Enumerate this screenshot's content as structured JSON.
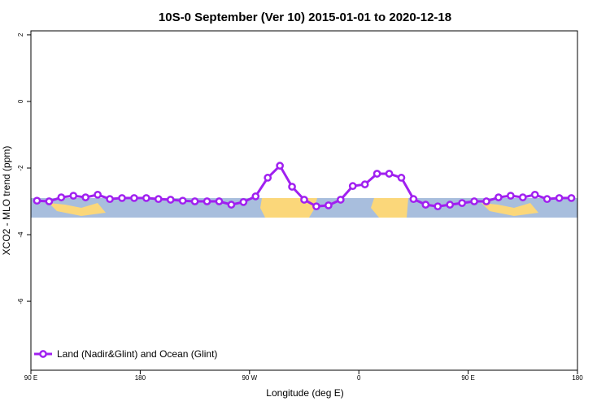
{
  "chart_data": {
    "type": "line",
    "title": "10S-0 September (Ver 10)   2015-01-01 to 2020-12-18",
    "x_label": "Longitude (deg E)",
    "y_label": "XCO2 - MLO trend (ppm)",
    "x": [
      95,
      105,
      115,
      125,
      135,
      145,
      155,
      165,
      175,
      185,
      195,
      205,
      215,
      225,
      235,
      245,
      255,
      265,
      275,
      285,
      295,
      305,
      315,
      325,
      335,
      345,
      355,
      365,
      375,
      385,
      395,
      405,
      415,
      425,
      435,
      445,
      455,
      465,
      475,
      485,
      495,
      505,
      515,
      525,
      535
    ],
    "series": [
      {
        "name": "Land (Nadir&Glint) and Ocean (Glint)",
        "color": "#a020f0",
        "values": [
          -2.98,
          -3.0,
          -2.88,
          -2.83,
          -2.88,
          -2.8,
          -2.93,
          -2.9,
          -2.9,
          -2.9,
          -2.93,
          -2.95,
          -2.98,
          -3.0,
          -3.0,
          -3.0,
          -3.1,
          -3.02,
          -2.85,
          -2.29,
          -1.93,
          -2.56,
          -2.95,
          -3.15,
          -3.12,
          -2.95,
          -2.54,
          -2.49,
          -2.17,
          -2.17,
          -2.29,
          -2.93,
          -3.1,
          -3.15,
          -3.1,
          -3.05,
          -3.0,
          -3.0,
          -2.88,
          -2.83,
          -2.88,
          -2.8,
          -2.93,
          -2.9,
          -2.9
        ]
      }
    ],
    "xlim": [
      90,
      540
    ],
    "xticks": [
      {
        "value": 90,
        "label": "90 E"
      },
      180,
      {
        "value": 270,
        "label": "90 W"
      },
      {
        "value": 360,
        "label": "0"
      },
      {
        "value": 450,
        "label": "90 E"
      },
      {
        "value": 540,
        "label": "180"
      }
    ],
    "ylim": [
      -8.07,
      2.12
    ],
    "yticks": [
      2,
      0,
      -2,
      -4,
      -6
    ],
    "legend": "bottom-left"
  }
}
